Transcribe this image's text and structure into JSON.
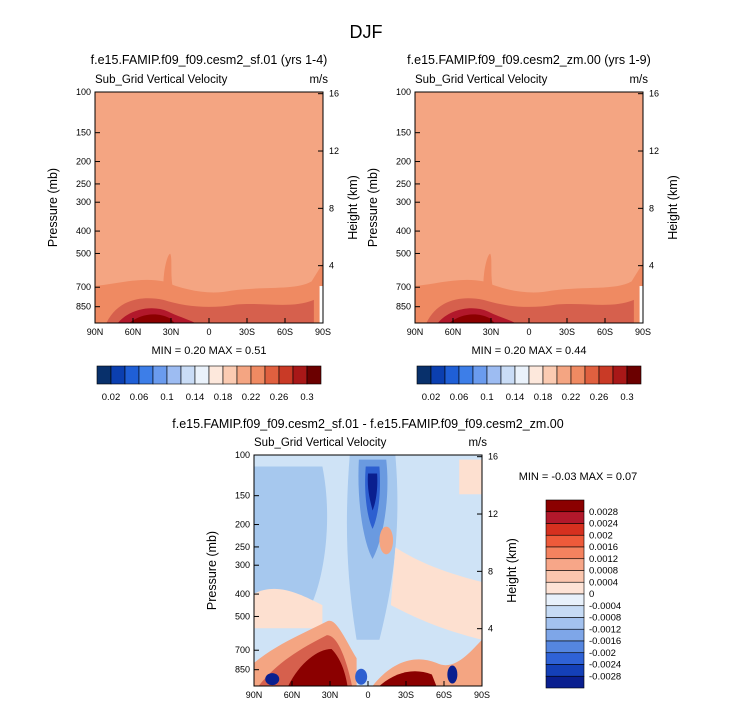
{
  "page": {
    "title": "DJF"
  },
  "colors": {
    "lowest": "#f4a582",
    "low": "#fbbf9e",
    "mid": "#ef8a62",
    "high": "#d6604d",
    "higher": "#b2182b",
    "highest": "#8b0000",
    "diff_bg": "#cfe3f6",
    "diff_light": "#a6c8ee",
    "diff_mid": "#6a9ae0",
    "diff_blue": "#2d5fd0",
    "diff_deep": "#0a1f8f",
    "diff_pos_light": "#fde0d0",
    "diff_pos_mid": "#f4a582",
    "diff_pos_strong": "#d6604d",
    "diff_pos_deep": "#8b0000"
  },
  "chart_data": [
    {
      "type": "heatmap",
      "id": "panel_a",
      "title": "f.e15.FAMIP.f09_f09.cesm2_sf.01 (yrs 1-4)",
      "field_label": "Sub_Grid Vertical Velocity",
      "units": "m/s",
      "xlabel": "",
      "ylabel": "Pressure (mb)",
      "y2label": "Height (km)",
      "x_ticks": [
        "90N",
        "60N",
        "30N",
        "0",
        "30S",
        "60S",
        "90S"
      ],
      "y_ticks": [
        100,
        150,
        200,
        250,
        300,
        400,
        500,
        700,
        850
      ],
      "y_tick_labels": [
        "100",
        "150",
        "200",
        "250",
        "300",
        "400",
        "500",
        "700",
        "850"
      ],
      "y2_ticks": [
        16,
        12,
        8,
        4
      ],
      "y2_tick_labels": [
        "16",
        "12",
        "8",
        "4"
      ],
      "ylim": [
        100,
        1000
      ],
      "stats": "MIN =  0.20  MAX =  0.51",
      "min": 0.2,
      "max": 0.51,
      "colorbar": {
        "colors": [
          "#08306b",
          "#0b3fb0",
          "#1f5fd6",
          "#3d7ee8",
          "#6a9bee",
          "#9dbcf2",
          "#c9dcf6",
          "#eaf2fb",
          "#fde8dc",
          "#fbcbb2",
          "#f4a582",
          "#ef8a62",
          "#e0603f",
          "#c93a26",
          "#a81818",
          "#6b0000"
        ],
        "labels": [
          "0.02",
          "0.06",
          "0.1",
          "0.14",
          "0.18",
          "0.22",
          "0.26",
          "0.3"
        ]
      }
    },
    {
      "type": "heatmap",
      "id": "panel_b",
      "title": "f.e15.FAMIP.f09_f09.cesm2_zm.00 (yrs 1-9)",
      "field_label": "Sub_Grid Vertical Velocity",
      "units": "m/s",
      "xlabel": "",
      "ylabel": "Pressure (mb)",
      "y2label": "Height (km)",
      "x_ticks": [
        "90N",
        "60N",
        "30N",
        "0",
        "30S",
        "60S",
        "90S"
      ],
      "y_ticks": [
        100,
        150,
        200,
        250,
        300,
        400,
        500,
        700,
        850
      ],
      "y_tick_labels": [
        "100",
        "150",
        "200",
        "250",
        "300",
        "400",
        "500",
        "700",
        "850"
      ],
      "y2_ticks": [
        16,
        12,
        8,
        4
      ],
      "y2_tick_labels": [
        "16",
        "12",
        "8",
        "4"
      ],
      "ylim": [
        100,
        1000
      ],
      "stats": "MIN =  0.20  MAX =  0.44",
      "min": 0.2,
      "max": 0.44,
      "colorbar": {
        "colors": [
          "#08306b",
          "#0b3fb0",
          "#1f5fd6",
          "#3d7ee8",
          "#6a9bee",
          "#9dbcf2",
          "#c9dcf6",
          "#eaf2fb",
          "#fde8dc",
          "#fbcbb2",
          "#f4a582",
          "#ef8a62",
          "#e0603f",
          "#c93a26",
          "#a81818",
          "#6b0000"
        ],
        "labels": [
          "0.02",
          "0.06",
          "0.1",
          "0.14",
          "0.18",
          "0.22",
          "0.26",
          "0.3"
        ]
      }
    },
    {
      "type": "heatmap",
      "id": "panel_diff",
      "title": "f.e15.FAMIP.f09_f09.cesm2_sf.01 - f.e15.FAMIP.f09_f09.cesm2_zm.00",
      "field_label": "Sub_Grid Vertical Velocity",
      "units": "m/s",
      "xlabel": "",
      "ylabel": "Pressure (mb)",
      "y2label": "Height (km)",
      "x_ticks": [
        "90N",
        "60N",
        "30N",
        "0",
        "30S",
        "60S",
        "90S"
      ],
      "y_ticks": [
        100,
        150,
        200,
        250,
        300,
        400,
        500,
        700,
        850
      ],
      "y_tick_labels": [
        "100",
        "150",
        "200",
        "250",
        "300",
        "400",
        "500",
        "700",
        "850"
      ],
      "y2_ticks": [
        16,
        12,
        8,
        4
      ],
      "y2_tick_labels": [
        "16",
        "12",
        "8",
        "4"
      ],
      "ylim": [
        100,
        1000
      ],
      "stats": "MIN = -0.03  MAX =  0.07",
      "min": -0.03,
      "max": 0.07,
      "colorbar": {
        "colors": [
          "#8b0000",
          "#b2182b",
          "#d6301f",
          "#ee5a3a",
          "#f4825f",
          "#f7a688",
          "#fbc6ae",
          "#fde3d6",
          "#e8f1fb",
          "#c6dbf5",
          "#a3c2ef",
          "#7ea6e8",
          "#5586e0",
          "#2f62d6",
          "#1440b8",
          "#0a1f8f"
        ],
        "labels": [
          "0.0028",
          "0.0024",
          "0.002",
          "0.0016",
          "0.0012",
          "0.0008",
          "0.0004",
          "0",
          "-0.0004",
          "-0.0008",
          "-0.0012",
          "-0.0016",
          "-0.002",
          "-0.0024",
          "-0.0028"
        ]
      }
    }
  ]
}
